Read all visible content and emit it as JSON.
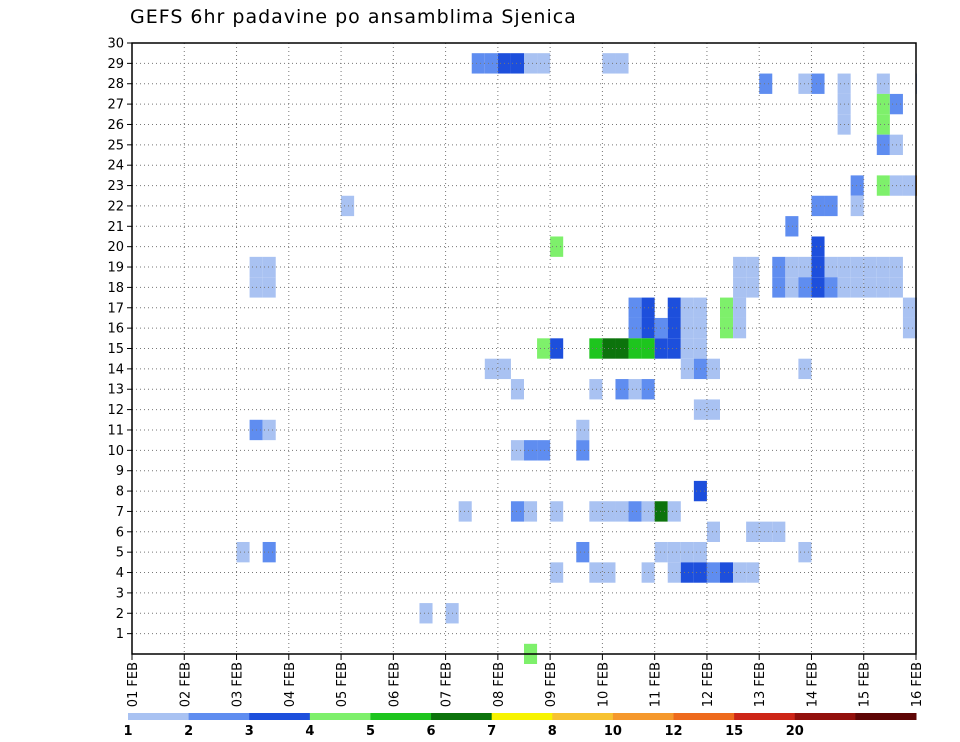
{
  "chart_data": {
    "type": "heatmap",
    "title": "GEFS 6hr padavine po ansamblima Sjenica",
    "x_labels": [
      "01 FEB",
      "02 FEB",
      "03 FEB",
      "04 FEB",
      "05 FEB",
      "06 FEB",
      "07 FEB",
      "08 FEB",
      "09 FEB",
      "10 FEB",
      "11 FEB",
      "12 FEB",
      "13 FEB",
      "14 FEB",
      "15 FEB",
      "16 FEB"
    ],
    "xlim": [
      0,
      60
    ],
    "x_unit": "6-hour steps from 01 FEB",
    "y_labels": [
      "1",
      "2",
      "3",
      "4",
      "5",
      "6",
      "7",
      "8",
      "9",
      "10",
      "11",
      "12",
      "13",
      "14",
      "15",
      "16",
      "17",
      "18",
      "19",
      "20",
      "21",
      "22",
      "23",
      "24",
      "25",
      "26",
      "27",
      "28",
      "29",
      "30"
    ],
    "ylim": [
      0,
      30
    ],
    "grid": true,
    "colorbar": {
      "levels": [
        "1",
        "2",
        "3",
        "4",
        "5",
        "6",
        "7",
        "8",
        "10",
        "12",
        "15",
        "20"
      ],
      "colors": [
        "#a9c2f2",
        "#5f8df0",
        "#1d4fdc",
        "#7ef06b",
        "#1ec51e",
        "#0c730c",
        "#f7f300",
        "#f7c231",
        "#f5982c",
        "#ee6a1c",
        "#cd2517",
        "#92100c",
        "#5e0606"
      ]
    },
    "cells": [
      [
        26,
        29,
        1,
        2
      ],
      [
        27,
        29,
        1,
        2
      ],
      [
        28,
        29,
        1,
        3
      ],
      [
        29,
        29,
        1,
        3
      ],
      [
        30,
        29,
        1,
        1
      ],
      [
        31,
        29,
        1,
        1
      ],
      [
        36,
        29,
        1,
        1
      ],
      [
        37,
        29,
        1,
        1
      ],
      [
        48,
        28,
        1,
        2
      ],
      [
        51,
        28,
        1,
        1
      ],
      [
        52,
        28,
        1,
        2
      ],
      [
        54,
        28,
        1,
        1
      ],
      [
        57,
        28,
        1,
        1
      ],
      [
        60,
        28,
        1,
        1
      ],
      [
        54,
        27,
        1,
        1
      ],
      [
        57,
        27,
        1,
        4
      ],
      [
        58,
        27,
        1,
        2
      ],
      [
        54,
        26,
        1,
        1
      ],
      [
        57,
        26,
        1,
        4
      ],
      [
        57,
        25,
        1,
        2
      ],
      [
        58,
        25,
        1,
        1
      ],
      [
        55,
        23,
        1,
        2
      ],
      [
        57,
        23,
        1,
        4
      ],
      [
        58,
        23,
        1,
        1
      ],
      [
        59,
        23,
        1,
        1
      ],
      [
        60,
        23,
        1,
        9
      ],
      [
        16,
        22,
        1,
        1
      ],
      [
        52,
        22,
        1,
        2
      ],
      [
        53,
        22,
        1,
        2
      ],
      [
        55,
        22,
        1,
        1
      ],
      [
        50,
        21,
        1,
        2
      ],
      [
        52,
        20,
        1,
        3
      ],
      [
        32,
        20,
        1,
        4
      ],
      [
        9,
        19,
        1,
        1
      ],
      [
        10,
        19,
        1,
        1
      ],
      [
        46,
        19,
        1,
        1
      ],
      [
        47,
        19,
        1,
        1
      ],
      [
        49,
        19,
        1,
        2
      ],
      [
        50,
        19,
        1,
        1
      ],
      [
        51,
        19,
        1,
        1
      ],
      [
        52,
        19,
        1,
        3
      ],
      [
        53,
        19,
        1,
        1
      ],
      [
        54,
        19,
        1,
        1
      ],
      [
        55,
        19,
        1,
        1
      ],
      [
        56,
        19,
        1,
        1
      ],
      [
        57,
        19,
        1,
        1
      ],
      [
        58,
        19,
        1,
        1
      ],
      [
        9,
        18,
        1,
        1
      ],
      [
        10,
        18,
        1,
        1
      ],
      [
        46,
        18,
        1,
        1
      ],
      [
        47,
        18,
        1,
        1
      ],
      [
        49,
        18,
        1,
        2
      ],
      [
        50,
        18,
        1,
        1
      ],
      [
        51,
        18,
        1,
        2
      ],
      [
        52,
        18,
        1,
        3
      ],
      [
        53,
        18,
        1,
        2
      ],
      [
        54,
        18,
        1,
        1
      ],
      [
        55,
        18,
        1,
        1
      ],
      [
        56,
        18,
        1,
        1
      ],
      [
        57,
        18,
        1,
        1
      ],
      [
        58,
        18,
        1,
        1
      ],
      [
        38,
        17,
        1,
        2
      ],
      [
        39,
        17,
        1,
        3
      ],
      [
        41,
        17,
        1,
        3
      ],
      [
        42,
        17,
        1,
        1
      ],
      [
        43,
        17,
        1,
        1
      ],
      [
        45,
        17,
        1,
        4
      ],
      [
        46,
        17,
        1,
        1
      ],
      [
        59,
        17,
        1,
        1
      ],
      [
        60,
        17,
        1,
        1
      ],
      [
        38,
        16,
        1,
        2
      ],
      [
        39,
        16,
        1,
        3
      ],
      [
        40,
        16,
        1,
        2
      ],
      [
        41,
        16,
        1,
        3
      ],
      [
        42,
        16,
        1,
        1
      ],
      [
        43,
        16,
        1,
        1
      ],
      [
        45,
        16,
        1,
        4
      ],
      [
        46,
        16,
        1,
        1
      ],
      [
        59,
        16,
        1,
        1
      ],
      [
        60,
        16,
        1,
        1
      ],
      [
        31,
        15,
        1,
        4
      ],
      [
        32,
        15,
        1,
        3
      ],
      [
        35,
        15,
        1,
        5
      ],
      [
        36,
        15,
        1,
        6
      ],
      [
        37,
        15,
        1,
        6
      ],
      [
        38,
        15,
        1,
        5
      ],
      [
        39,
        15,
        1,
        5
      ],
      [
        40,
        15,
        1,
        3
      ],
      [
        41,
        15,
        1,
        3
      ],
      [
        42,
        15,
        1,
        1
      ],
      [
        43,
        15,
        1,
        1
      ],
      [
        27,
        14,
        1,
        1
      ],
      [
        28,
        14,
        1,
        1
      ],
      [
        42,
        14,
        1,
        1
      ],
      [
        43,
        14,
        1,
        2
      ],
      [
        44,
        14,
        1,
        1
      ],
      [
        51,
        14,
        1,
        1
      ],
      [
        29,
        13,
        1,
        1
      ],
      [
        35,
        13,
        1,
        1
      ],
      [
        37,
        13,
        1,
        2
      ],
      [
        38,
        13,
        1,
        1
      ],
      [
        39,
        13,
        1,
        2
      ],
      [
        43,
        12,
        1,
        1
      ],
      [
        44,
        12,
        1,
        1
      ],
      [
        9,
        11,
        1,
        2
      ],
      [
        10,
        11,
        1,
        1
      ],
      [
        34,
        11,
        1,
        1
      ],
      [
        29,
        10,
        1,
        1
      ],
      [
        30,
        10,
        1,
        2
      ],
      [
        31,
        10,
        1,
        2
      ],
      [
        34,
        10,
        1,
        2
      ],
      [
        43,
        8,
        1,
        3
      ],
      [
        25,
        7,
        1,
        1
      ],
      [
        29,
        7,
        1,
        2
      ],
      [
        30,
        7,
        1,
        1
      ],
      [
        32,
        7,
        1,
        1
      ],
      [
        35,
        7,
        1,
        1
      ],
      [
        36,
        7,
        1,
        1
      ],
      [
        37,
        7,
        1,
        1
      ],
      [
        38,
        7,
        1,
        2
      ],
      [
        39,
        7,
        1,
        1
      ],
      [
        40,
        7,
        1,
        6
      ],
      [
        41,
        7,
        1,
        1
      ],
      [
        44,
        6,
        1,
        1
      ],
      [
        47,
        6,
        1,
        1
      ],
      [
        48,
        6,
        1,
        1
      ],
      [
        49,
        6,
        1,
        1
      ],
      [
        8,
        5,
        1,
        1
      ],
      [
        10,
        5,
        1,
        2
      ],
      [
        34,
        5,
        1,
        2
      ],
      [
        40,
        5,
        1,
        1
      ],
      [
        41,
        5,
        1,
        1
      ],
      [
        42,
        5,
        1,
        1
      ],
      [
        43,
        5,
        1,
        1
      ],
      [
        51,
        5,
        1,
        1
      ],
      [
        32,
        4,
        1,
        1
      ],
      [
        35,
        4,
        1,
        1
      ],
      [
        36,
        4,
        1,
        1
      ],
      [
        39,
        4,
        1,
        1
      ],
      [
        41,
        4,
        1,
        1
      ],
      [
        42,
        4,
        1,
        3
      ],
      [
        43,
        4,
        1,
        3
      ],
      [
        44,
        4,
        1,
        2
      ],
      [
        45,
        4,
        1,
        3
      ],
      [
        46,
        4,
        1,
        1
      ],
      [
        47,
        4,
        1,
        1
      ],
      [
        22,
        2,
        1,
        1
      ],
      [
        24,
        2,
        1,
        1
      ],
      [
        30,
        0,
        1,
        4
      ]
    ]
  }
}
